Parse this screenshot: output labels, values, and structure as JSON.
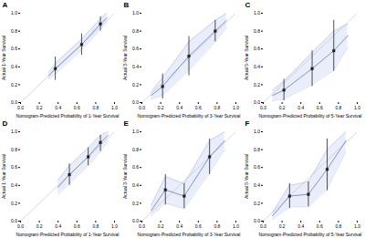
{
  "chart_data": [
    {
      "type": "line",
      "title": "A",
      "xlabel": "Nomogram-Predicted Probability of 1-Year Survival",
      "ylabel": "Actual 1-Year Survival",
      "xlim": [
        0.0,
        1.0
      ],
      "ylim": [
        0.0,
        1.0
      ],
      "xticks": [
        {
          "value": 0.0,
          "label": "0.0"
        },
        0.2,
        0.4,
        0.6,
        0.8,
        {
          "value": 1.0,
          "label": "1.0"
        }
      ],
      "yticks": [
        {
          "value": 0.0,
          "label": "0.0"
        },
        0.2,
        0.4,
        0.6,
        0.8,
        {
          "value": 1.0,
          "label": "1.0"
        }
      ],
      "grid": false,
      "reference": {
        "x": [
          0,
          1
        ],
        "values": [
          0,
          1
        ],
        "color": "#c8c8c8"
      },
      "band": {
        "x": [
          0.3,
          0.37,
          0.65,
          0.85,
          0.92
        ],
        "low": [
          0.26,
          0.32,
          0.59,
          0.82,
          0.9
        ],
        "high": [
          0.34,
          0.44,
          0.71,
          0.94,
          1.0
        ],
        "color": "#aabbee"
      },
      "calibration": {
        "x": [
          0.3,
          0.37,
          0.65,
          0.85,
          0.92
        ],
        "values": [
          0.3,
          0.38,
          0.65,
          0.88,
          0.95
        ],
        "color": "#7788cc"
      },
      "points": {
        "x": [
          0.37,
          0.65,
          0.85
        ],
        "values": [
          0.38,
          0.65,
          0.88
        ],
        "ci_low": [
          0.25,
          0.53,
          0.8
        ],
        "ci_high": [
          0.51,
          0.77,
          0.96
        ],
        "color": "#222222",
        "marker": "square"
      }
    },
    {
      "type": "line",
      "title": "B",
      "xlabel": "Nomogram-Predicted Probability of 3-Year Survival",
      "ylabel": "Actual 3-Year Survival",
      "xlim": [
        0.0,
        1.0
      ],
      "ylim": [
        0.0,
        1.0
      ],
      "xticks": [
        {
          "value": 0.0,
          "label": "0.0"
        },
        0.2,
        0.4,
        0.6,
        0.8,
        {
          "value": 1.0,
          "label": "1.0"
        }
      ],
      "yticks": [
        {
          "value": 0.0,
          "label": "0.0"
        },
        0.2,
        0.4,
        0.6,
        0.8,
        {
          "value": 1.0,
          "label": "1.0"
        }
      ],
      "grid": false,
      "reference": {
        "x": [
          0,
          1
        ],
        "values": [
          0,
          1
        ],
        "color": "#c8c8c8"
      },
      "band": {
        "x": [
          0.1,
          0.22,
          0.5,
          0.78,
          0.9
        ],
        "low": [
          0.04,
          0.08,
          0.36,
          0.68,
          0.84
        ],
        "high": [
          0.12,
          0.28,
          0.68,
          0.92,
          1.0
        ],
        "color": "#aabbee"
      },
      "calibration": {
        "x": [
          0.1,
          0.22,
          0.5,
          0.78,
          0.9
        ],
        "values": [
          0.08,
          0.18,
          0.52,
          0.8,
          0.92
        ],
        "color": "#7788cc"
      },
      "points": {
        "x": [
          0.22,
          0.5,
          0.78
        ],
        "values": [
          0.18,
          0.52,
          0.8
        ],
        "ci_low": [
          0.04,
          0.3,
          0.68
        ],
        "ci_high": [
          0.32,
          0.74,
          0.92
        ],
        "color": "#222222",
        "marker": "square"
      }
    },
    {
      "type": "line",
      "title": "C",
      "xlabel": "Nomogram-Predicted Probability of 5-Year Survival",
      "ylabel": "Actual 5-Year Survival",
      "xlim": [
        0.0,
        1.0
      ],
      "ylim": [
        0.0,
        1.0
      ],
      "xticks": [
        {
          "value": 0.0,
          "label": "0.0"
        },
        0.2,
        0.4,
        0.6,
        0.8,
        {
          "value": 1.0,
          "label": "1.0"
        }
      ],
      "yticks": [
        {
          "value": 0.0,
          "label": "0.0"
        },
        0.2,
        0.4,
        0.6,
        0.8,
        {
          "value": 1.0,
          "label": "1.0"
        }
      ],
      "grid": false,
      "reference": {
        "x": [
          0,
          1
        ],
        "values": [
          0,
          1
        ],
        "color": "#c8c8c8"
      },
      "band": {
        "x": [
          0.1,
          0.22,
          0.52,
          0.75,
          0.9
        ],
        "low": [
          0.02,
          0.04,
          0.2,
          0.36,
          0.62
        ],
        "high": [
          0.14,
          0.24,
          0.56,
          0.8,
          0.88
        ],
        "color": "#aabbee"
      },
      "calibration": {
        "x": [
          0.1,
          0.22,
          0.52,
          0.75,
          0.9
        ],
        "values": [
          0.08,
          0.14,
          0.38,
          0.58,
          0.75
        ],
        "color": "#7788cc"
      },
      "points": {
        "x": [
          0.22,
          0.52,
          0.75
        ],
        "values": [
          0.14,
          0.38,
          0.58
        ],
        "ci_low": [
          0.02,
          0.18,
          0.35
        ],
        "ci_high": [
          0.26,
          0.58,
          0.92
        ],
        "color": "#222222",
        "marker": "square"
      }
    },
    {
      "type": "line",
      "title": "D",
      "xlabel": "Nomogram-Predicted Probability of 1-Year Survival",
      "ylabel": "Actual 1-Year Survival",
      "xlim": [
        0.0,
        1.0
      ],
      "ylim": [
        0.0,
        1.0
      ],
      "xticks": [
        {
          "value": 0.0,
          "label": "0.0"
        },
        0.2,
        0.4,
        0.6,
        0.8,
        {
          "value": 1.0,
          "label": "1.0"
        }
      ],
      "yticks": [
        {
          "value": 0.0,
          "label": "0.0"
        },
        0.2,
        0.4,
        0.6,
        0.8,
        {
          "value": 1.0,
          "label": "1.0"
        }
      ],
      "grid": false,
      "reference": {
        "x": [
          0,
          1
        ],
        "values": [
          0,
          1
        ],
        "color": "#c8c8c8"
      },
      "band": {
        "x": [
          0.4,
          0.52,
          0.72,
          0.85,
          0.93
        ],
        "low": [
          0.3,
          0.42,
          0.62,
          0.78,
          0.9
        ],
        "high": [
          0.46,
          0.62,
          0.82,
          0.96,
          1.0
        ],
        "color": "#aabbee"
      },
      "calibration": {
        "x": [
          0.4,
          0.52,
          0.72,
          0.85,
          0.93
        ],
        "values": [
          0.38,
          0.52,
          0.72,
          0.88,
          0.96
        ],
        "color": "#7788cc"
      },
      "points": {
        "x": [
          0.52,
          0.72,
          0.85
        ],
        "values": [
          0.52,
          0.72,
          0.88
        ],
        "ci_low": [
          0.4,
          0.62,
          0.78
        ],
        "ci_high": [
          0.64,
          0.82,
          0.96
        ],
        "color": "#222222",
        "marker": "square"
      }
    },
    {
      "type": "line",
      "title": "E",
      "xlabel": "Nomogram-Predicted Probability of 3-Year Survival",
      "ylabel": "Actual 3-Year Survival",
      "xlim": [
        0.0,
        1.0
      ],
      "ylim": [
        0.0,
        1.0
      ],
      "xticks": [
        {
          "value": 0.0,
          "label": "0.0"
        },
        0.2,
        0.4,
        0.6,
        0.8,
        {
          "value": 1.0,
          "label": "1.0"
        }
      ],
      "yticks": [
        {
          "value": 0.0,
          "label": "0.0"
        },
        0.2,
        0.4,
        0.6,
        0.8,
        {
          "value": 1.0,
          "label": "1.0"
        }
      ],
      "grid": false,
      "reference": {
        "x": [
          0,
          1
        ],
        "values": [
          0,
          1
        ],
        "color": "#c8c8c8"
      },
      "band": {
        "x": [
          0.1,
          0.25,
          0.45,
          0.72,
          0.88
        ],
        "low": [
          0.06,
          0.2,
          0.14,
          0.54,
          0.8
        ],
        "high": [
          0.18,
          0.5,
          0.42,
          0.9,
          1.0
        ],
        "color": "#aabbee"
      },
      "calibration": {
        "x": [
          0.1,
          0.25,
          0.45,
          0.72,
          0.88
        ],
        "values": [
          0.12,
          0.35,
          0.28,
          0.72,
          0.9
        ],
        "color": "#7788cc"
      },
      "points": {
        "x": [
          0.25,
          0.45,
          0.72
        ],
        "values": [
          0.35,
          0.28,
          0.72
        ],
        "ci_low": [
          0.18,
          0.14,
          0.52
        ],
        "ci_high": [
          0.52,
          0.42,
          0.92
        ],
        "color": "#222222",
        "marker": "square"
      }
    },
    {
      "type": "line",
      "title": "F",
      "xlabel": "Nomogram-Predicted Probability of 5-Year Survival",
      "ylabel": "Actual 5-Year Survival",
      "xlim": [
        0.0,
        1.0
      ],
      "ylim": [
        0.0,
        1.0
      ],
      "xticks": [
        {
          "value": 0.0,
          "label": "0.0"
        },
        0.2,
        0.4,
        0.6,
        0.8,
        {
          "value": 1.0,
          "label": "1.0"
        }
      ],
      "yticks": [
        {
          "value": 0.0,
          "label": "0.0"
        },
        0.2,
        0.4,
        0.6,
        0.8,
        {
          "value": 1.0,
          "label": "1.0"
        }
      ],
      "grid": false,
      "reference": {
        "x": [
          0,
          1
        ],
        "values": [
          0,
          1
        ],
        "color": "#c8c8c8"
      },
      "band": {
        "x": [
          0.1,
          0.28,
          0.48,
          0.68,
          0.88
        ],
        "low": [
          0.02,
          0.16,
          0.16,
          0.36,
          0.78
        ],
        "high": [
          0.1,
          0.4,
          0.44,
          0.8,
          1.0
        ],
        "color": "#aabbee"
      },
      "calibration": {
        "x": [
          0.1,
          0.28,
          0.48,
          0.68,
          0.88
        ],
        "values": [
          0.06,
          0.28,
          0.3,
          0.58,
          0.9
        ],
        "color": "#7788cc"
      },
      "points": {
        "x": [
          0.28,
          0.48,
          0.68
        ],
        "values": [
          0.28,
          0.3,
          0.58
        ],
        "ci_low": [
          0.14,
          0.16,
          0.34
        ],
        "ci_high": [
          0.42,
          0.44,
          0.92
        ],
        "color": "#222222",
        "marker": "square"
      }
    }
  ]
}
